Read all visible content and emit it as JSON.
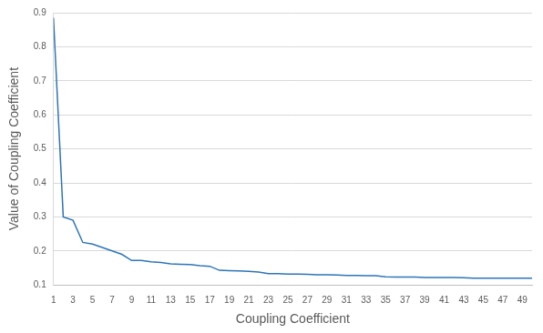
{
  "chart_data": {
    "type": "line",
    "x_label": "Coupling Coefficient",
    "y_label": "Value of Coupling Coefficient",
    "categories": [
      1,
      null,
      3,
      null,
      5,
      null,
      7,
      null,
      9,
      null,
      11,
      null,
      13,
      null,
      15,
      null,
      17,
      null,
      19,
      null,
      21,
      null,
      23,
      null,
      25,
      null,
      27,
      null,
      29,
      null,
      31,
      null,
      33,
      null,
      35,
      null,
      37,
      null,
      39,
      null,
      41,
      null,
      43,
      null,
      45,
      null,
      47,
      null,
      49,
      null
    ],
    "values": [
      0.885,
      0.3,
      0.29,
      0.225,
      0.22,
      0.21,
      0.2,
      0.19,
      0.172,
      0.172,
      0.168,
      0.166,
      0.162,
      0.161,
      0.16,
      0.157,
      0.155,
      0.143,
      0.142,
      0.141,
      0.14,
      0.138,
      0.133,
      0.133,
      0.132,
      0.132,
      0.131,
      0.13,
      0.13,
      0.129,
      0.128,
      0.128,
      0.127,
      0.127,
      0.124,
      0.123,
      0.123,
      0.123,
      0.122,
      0.122,
      0.122,
      0.122,
      0.121,
      0.12,
      0.12,
      0.12,
      0.12,
      0.12,
      0.12,
      0.12
    ],
    "color": "#2e75b6",
    "ylim": [
      0.1,
      0.9
    ],
    "yticks": [
      0.1,
      0.2,
      0.3,
      0.4,
      0.5,
      0.6,
      0.7,
      0.8,
      0.9
    ],
    "grid": true
  }
}
